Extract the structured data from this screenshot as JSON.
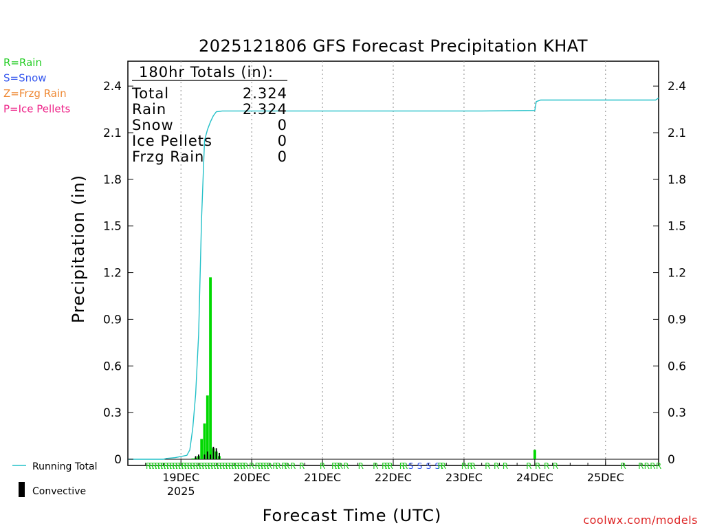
{
  "chart_data": {
    "type": "bar",
    "title": "2025121806 GFS Forecast Precipitation KHAT",
    "xlabel": "Forecast Time (UTC)",
    "ylabel": "Precipitation (in)",
    "ylim": [
      -0.04,
      2.56
    ],
    "xlim_hours": [
      0,
      180
    ],
    "yticks": [
      0,
      0.3,
      0.6,
      0.9,
      1.2,
      1.5,
      1.8,
      2.1,
      2.4
    ],
    "ytick_labels": [
      "0",
      "0.3",
      "0.6",
      "0.9",
      "1.2",
      "1.5",
      "1.8",
      "2.1",
      "2.4"
    ],
    "day_ticks": [
      {
        "hour": 18,
        "label": "19DEC"
      },
      {
        "hour": 42,
        "label": "20DEC"
      },
      {
        "hour": 66,
        "label": "21DEC"
      },
      {
        "hour": 90,
        "label": "22DEC"
      },
      {
        "hour": 114,
        "label": "23DEC"
      },
      {
        "hour": 138,
        "label": "24DEC"
      },
      {
        "hour": 162,
        "label": "25DEC"
      }
    ],
    "year_label": "2025",
    "totals_box": {
      "header": "180hr Totals (in):",
      "rows": [
        {
          "label": "Total",
          "value": "2.324"
        },
        {
          "label": "Rain",
          "value": "2.324"
        },
        {
          "label": "Snow",
          "value": "0"
        },
        {
          "label": "Ice Pellets",
          "value": "0"
        },
        {
          "label": "Frzg Rain",
          "value": "0"
        }
      ]
    },
    "legend_types": [
      {
        "label": "R=Rain",
        "color": "#22cc22"
      },
      {
        "label": "S=Snow",
        "color": "#3355ee"
      },
      {
        "label": "Z=Frzg Rain",
        "color": "#ee8833"
      },
      {
        "label": "P=Ice Pellets",
        "color": "#ee2288"
      }
    ],
    "legend_series": [
      {
        "label": "Running Total",
        "color": "#22c0c8"
      },
      {
        "label": "Convective",
        "color": "#000000"
      }
    ],
    "running_total": {
      "hours": [
        0,
        12,
        13,
        16,
        20,
        21,
        22,
        23,
        24,
        25,
        26,
        27,
        28,
        29,
        30,
        31,
        32,
        60,
        90,
        120,
        138,
        138.5,
        140,
        160,
        179,
        180
      ],
      "values": [
        0,
        0,
        0.005,
        0.01,
        0.025,
        0.06,
        0.2,
        0.42,
        0.8,
        1.55,
        2.05,
        2.12,
        2.17,
        2.21,
        2.235,
        2.237,
        2.24,
        2.24,
        2.24,
        2.24,
        2.243,
        2.3,
        2.31,
        2.31,
        2.31,
        2.324
      ]
    },
    "precip_bars": [
      {
        "hour": 22,
        "value": 0.005
      },
      {
        "hour": 23,
        "value": 0.01
      },
      {
        "hour": 24,
        "value": 0.02
      },
      {
        "hour": 25,
        "value": 0.13
      },
      {
        "hour": 26,
        "value": 0.23
      },
      {
        "hour": 27,
        "value": 0.41
      },
      {
        "hour": 28,
        "value": 1.17
      },
      {
        "hour": 29,
        "value": 0.07
      },
      {
        "hour": 30,
        "value": 0.05
      },
      {
        "hour": 31,
        "value": 0.02
      },
      {
        "hour": 138,
        "value": 0.06
      }
    ],
    "convective_bars": [
      {
        "hour": 23,
        "value": 0.02
      },
      {
        "hour": 24,
        "value": 0.03
      },
      {
        "hour": 26,
        "value": 0.03
      },
      {
        "hour": 27,
        "value": 0.05
      },
      {
        "hour": 28,
        "value": 0.03
      },
      {
        "hour": 29,
        "value": 0.08
      },
      {
        "hour": 30,
        "value": 0.07
      },
      {
        "hour": 31,
        "value": 0.04
      }
    ],
    "ptype_markers": [
      {
        "hour": 7,
        "type": "R"
      },
      {
        "hour": 8,
        "type": "R"
      },
      {
        "hour": 9,
        "type": "R"
      },
      {
        "hour": 10,
        "type": "R"
      },
      {
        "hour": 11,
        "type": "R"
      },
      {
        "hour": 12,
        "type": "R"
      },
      {
        "hour": 13,
        "type": "R"
      },
      {
        "hour": 14,
        "type": "R"
      },
      {
        "hour": 15,
        "type": "R"
      },
      {
        "hour": 16,
        "type": "R"
      },
      {
        "hour": 17,
        "type": "R"
      },
      {
        "hour": 18,
        "type": "R"
      },
      {
        "hour": 19,
        "type": "R"
      },
      {
        "hour": 20,
        "type": "R"
      },
      {
        "hour": 21,
        "type": "R"
      },
      {
        "hour": 22,
        "type": "R"
      },
      {
        "hour": 23,
        "type": "R"
      },
      {
        "hour": 24,
        "type": "R"
      },
      {
        "hour": 25,
        "type": "R"
      },
      {
        "hour": 26,
        "type": "R"
      },
      {
        "hour": 27,
        "type": "R"
      },
      {
        "hour": 28,
        "type": "R"
      },
      {
        "hour": 29,
        "type": "R"
      },
      {
        "hour": 30,
        "type": "R"
      },
      {
        "hour": 31,
        "type": "R"
      },
      {
        "hour": 32,
        "type": "R"
      },
      {
        "hour": 33,
        "type": "R"
      },
      {
        "hour": 34,
        "type": "R"
      },
      {
        "hour": 35,
        "type": "R"
      },
      {
        "hour": 36,
        "type": "R"
      },
      {
        "hour": 37,
        "type": "R"
      },
      {
        "hour": 38,
        "type": "R"
      },
      {
        "hour": 39,
        "type": "R"
      },
      {
        "hour": 40,
        "type": "R"
      },
      {
        "hour": 42,
        "type": "R"
      },
      {
        "hour": 44,
        "type": "R"
      },
      {
        "hour": 45,
        "type": "R"
      },
      {
        "hour": 46,
        "type": "R"
      },
      {
        "hour": 47,
        "type": "R"
      },
      {
        "hour": 48,
        "type": "R"
      },
      {
        "hour": 50,
        "type": "R"
      },
      {
        "hour": 51,
        "type": "R"
      },
      {
        "hour": 53,
        "type": "R"
      },
      {
        "hour": 54,
        "type": "R"
      },
      {
        "hour": 56,
        "type": "R"
      },
      {
        "hour": 59,
        "type": "R"
      },
      {
        "hour": 66,
        "type": "R"
      },
      {
        "hour": 70,
        "type": "R"
      },
      {
        "hour": 71,
        "type": "R"
      },
      {
        "hour": 72,
        "type": "R"
      },
      {
        "hour": 74,
        "type": "R"
      },
      {
        "hour": 79,
        "type": "R"
      },
      {
        "hour": 84,
        "type": "R"
      },
      {
        "hour": 87,
        "type": "R"
      },
      {
        "hour": 88,
        "type": "R"
      },
      {
        "hour": 89,
        "type": "R"
      },
      {
        "hour": 93,
        "type": "R"
      },
      {
        "hour": 94,
        "type": "R"
      },
      {
        "hour": 96,
        "type": "S"
      },
      {
        "hour": 99,
        "type": "S"
      },
      {
        "hour": 102,
        "type": "S"
      },
      {
        "hour": 105,
        "type": "S"
      },
      {
        "hour": 106,
        "type": "R"
      },
      {
        "hour": 107,
        "type": "R"
      },
      {
        "hour": 114,
        "type": "R"
      },
      {
        "hour": 116,
        "type": "R"
      },
      {
        "hour": 117,
        "type": "R"
      },
      {
        "hour": 122,
        "type": "R"
      },
      {
        "hour": 125,
        "type": "R"
      },
      {
        "hour": 128,
        "type": "R"
      },
      {
        "hour": 136,
        "type": "R"
      },
      {
        "hour": 139,
        "type": "R"
      },
      {
        "hour": 142,
        "type": "R"
      },
      {
        "hour": 145,
        "type": "R"
      },
      {
        "hour": 168,
        "type": "R"
      },
      {
        "hour": 174,
        "type": "R"
      },
      {
        "hour": 176,
        "type": "R"
      },
      {
        "hour": 178,
        "type": "R"
      },
      {
        "hour": 180,
        "type": "R"
      }
    ],
    "watermark": "coolwx.com/models"
  }
}
